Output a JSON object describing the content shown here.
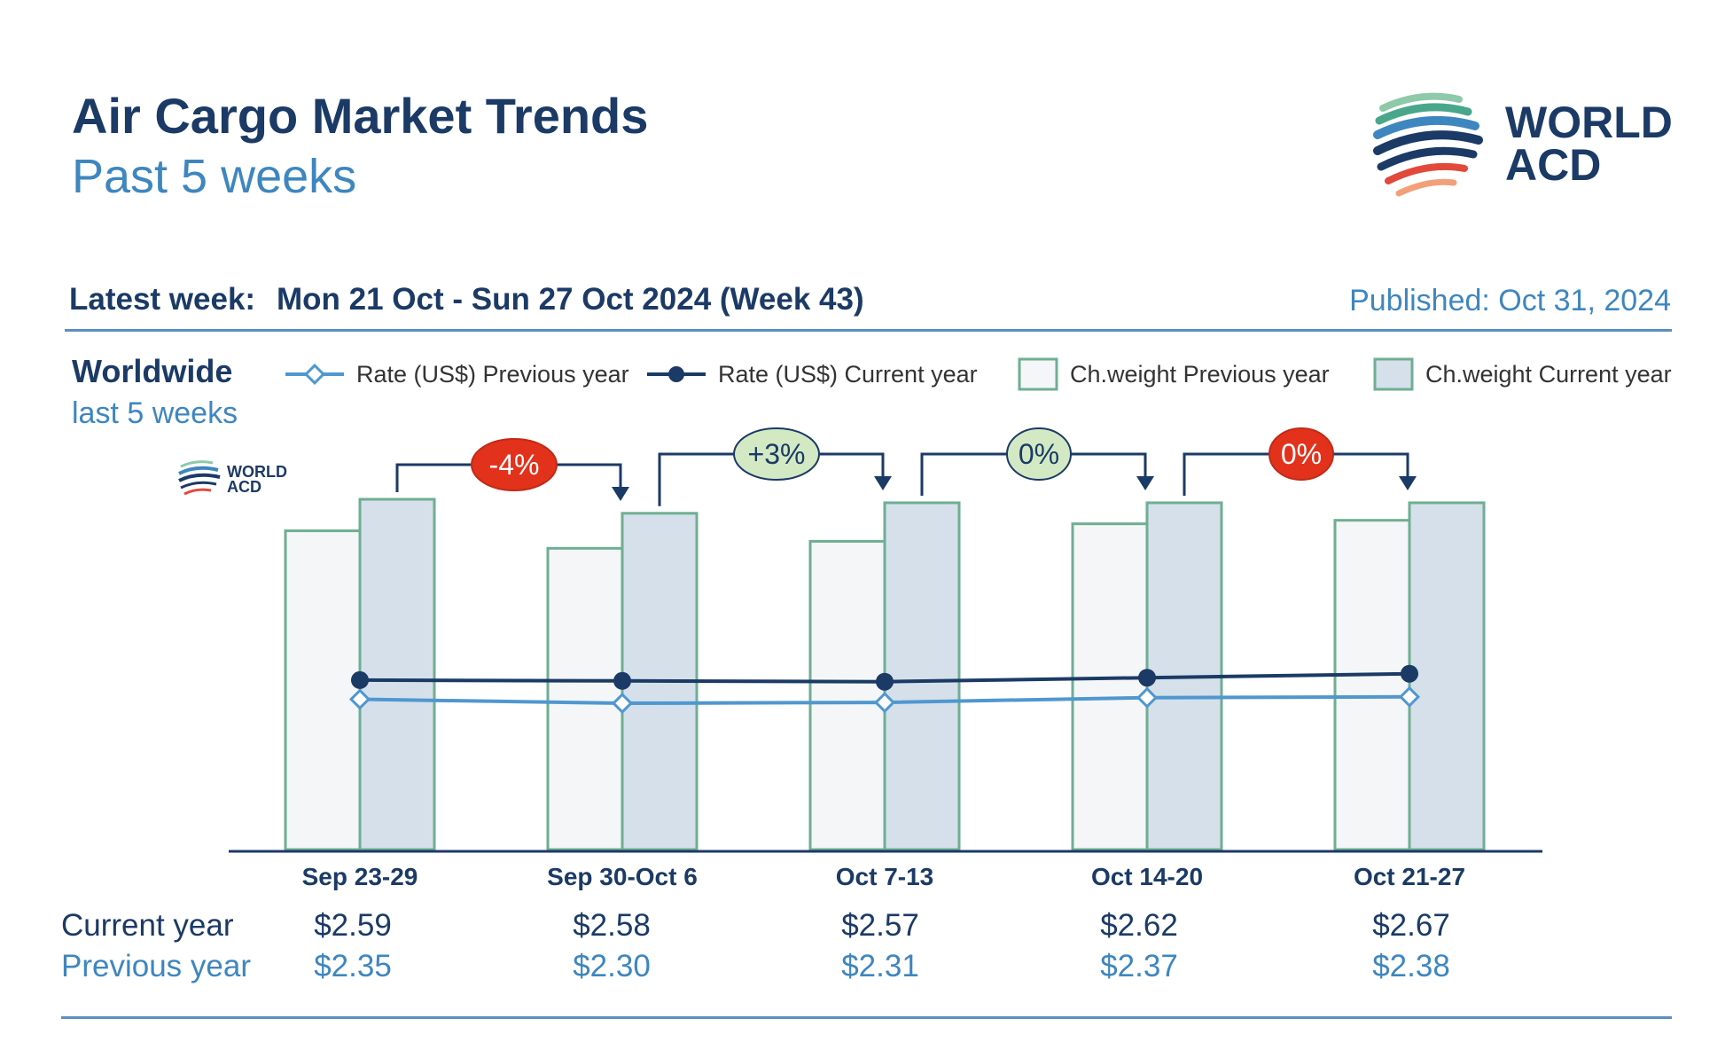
{
  "header": {
    "title": "Air Cargo Market Trends",
    "subtitle": "Past 5 weeks",
    "logo_text_line1": "WORLD",
    "logo_text_line2": "ACD",
    "latest_week_label": "Latest week:",
    "latest_week_value": "Mon 21 Oct - Sun 27 Oct 2024 (Week 43)",
    "published": "Published: Oct 31, 2024"
  },
  "region": {
    "name": "Worldwide",
    "period": "last 5 weeks"
  },
  "legend": [
    {
      "label": "Rate (US$) Previous year",
      "kind": "line-diamond"
    },
    {
      "label": "Rate (US$) Current year",
      "kind": "line-dot"
    },
    {
      "label": "Ch.weight Previous year",
      "kind": "box-light"
    },
    {
      "label": "Ch.weight Current year",
      "kind": "box-dark"
    }
  ],
  "table": {
    "current_label": "Current year",
    "previous_label": "Previous year"
  },
  "colors": {
    "navy": "#1b3a66",
    "light_blue": "#3e86bf",
    "bar_prev_fill": "#f4f6f8",
    "bar_cur_fill": "#d5e0ea",
    "bar_border": "#6fae92",
    "badge_red": "#e2321c",
    "badge_green": "#d3e9c4"
  },
  "chart_data": {
    "type": "bar",
    "categories": [
      "Sep 23-29",
      "Sep 30-Oct 6",
      "Oct 7-13",
      "Oct 14-20",
      "Oct 21-27"
    ],
    "series": [
      {
        "name": "Ch.weight Previous year",
        "type": "bar",
        "values": [
          91,
          86,
          88,
          93,
          94
        ]
      },
      {
        "name": "Ch.weight Current year",
        "type": "bar",
        "values": [
          100,
          96,
          99,
          99,
          99
        ]
      },
      {
        "name": "Rate (US$) Current year",
        "type": "line",
        "values": [
          2.59,
          2.58,
          2.57,
          2.62,
          2.67
        ]
      },
      {
        "name": "Rate (US$) Previous year",
        "type": "line",
        "values": [
          2.35,
          2.3,
          2.31,
          2.37,
          2.38
        ]
      }
    ],
    "rate_labels_current": [
      "$2.59",
      "$2.58",
      "$2.57",
      "$2.62",
      "$2.67"
    ],
    "rate_labels_previous": [
      "$2.35",
      "$2.30",
      "$2.31",
      "$2.37",
      "$2.38"
    ],
    "changes": [
      {
        "label": "-4%",
        "color": "red"
      },
      {
        "label": "+3%",
        "color": "green"
      },
      {
        "label": "0%",
        "color": "green"
      },
      {
        "label": "0%",
        "color": "red"
      }
    ],
    "bar_ylim": [
      0,
      100
    ],
    "rate_ylim": [
      0,
      6.5
    ],
    "grid": false,
    "legend_position": "top"
  }
}
